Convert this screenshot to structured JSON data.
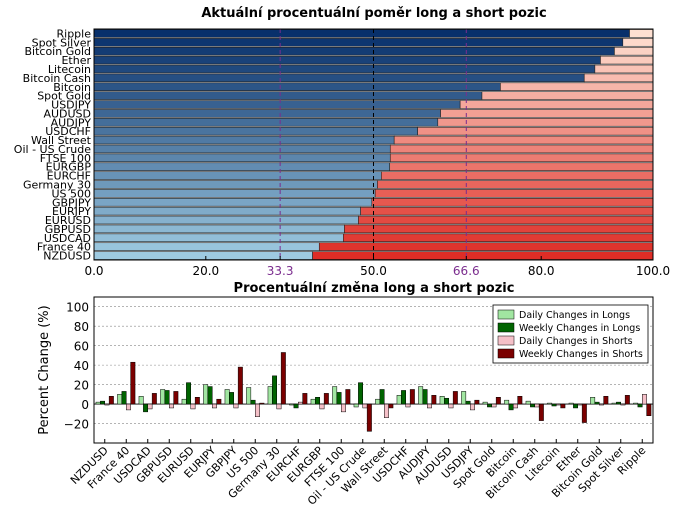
{
  "chart_data": [
    {
      "type": "bar",
      "orientation": "horizontal",
      "stacked": true,
      "title": "Aktuální procentuální poměr long a short pozic",
      "categories": [
        "Ripple",
        "Spot Silver",
        "Bitcoin Gold",
        "Ether",
        "Litecoin",
        "Bitcoin Cash",
        "Bitcoin",
        "Spot Gold",
        "USDJPY",
        "AUDUSD",
        "AUDJPY",
        "USDCHF",
        "Wall Street",
        "Oil - US Crude",
        "FTSE 100",
        "EURGBP",
        "EURCHF",
        "Germany 30",
        "US 500",
        "GBPJPY",
        "EURJPY",
        "EURUSD",
        "GBPUSD",
        "USDCAD",
        "France 40",
        "NZDUSD"
      ],
      "series": [
        {
          "values": [
            95.8,
            94.6,
            93.1,
            90.6,
            89.6,
            87.7,
            72.7,
            69.4,
            65.5,
            62.0,
            61.5,
            57.9,
            53.7,
            53.0,
            53.0,
            52.9,
            51.4,
            50.7,
            50.3,
            49.7,
            47.7,
            47.3,
            44.8,
            44.6,
            40.3,
            39.1
          ]
        },
        {
          "values": [
            4.2,
            5.4,
            6.9,
            9.4,
            10.4,
            12.3,
            27.3,
            30.6,
            34.5,
            38.0,
            38.5,
            42.1,
            46.3,
            47.0,
            47.0,
            47.1,
            48.6,
            49.3,
            49.7,
            50.3,
            52.3,
            52.7,
            55.2,
            55.4,
            59.7,
            60.9
          ]
        }
      ],
      "xlim": [
        0,
        100
      ],
      "xticks": [
        "0.0",
        "20.0",
        "33.3",
        "50.0",
        "66.6",
        "80.0",
        "100.0"
      ],
      "reference_lines": [
        33.3,
        50.0,
        66.6
      ],
      "colors": {
        "long_light": "#9ecae1",
        "long_dark": "#08306b",
        "short_light": "#fee0d2",
        "short_dark": "#de2d26",
        "ref_purple": "#7b2d8e"
      }
    },
    {
      "type": "bar",
      "title": "Procentuální změna long a short pozic",
      "ylabel": "Percent Change (%)",
      "ylim": [
        -40,
        110
      ],
      "yticks": [
        "100",
        "80",
        "60",
        "40",
        "20",
        "0",
        "−20"
      ],
      "categories": [
        "NZDUSD",
        "France 40",
        "USDCAD",
        "GBPUSD",
        "EURUSD",
        "EURJPY",
        "GBPJPY",
        "US 500",
        "Germany 30",
        "EURCHF",
        "EURGBP",
        "FTSE 100",
        "Oil - US Crude",
        "Wall Street",
        "USDCHF",
        "AUDJPY",
        "AUDUSD",
        "USDJPY",
        "Spot Gold",
        "Bitcoin",
        "Bitcoin Cash",
        "Litecoin",
        "Ether",
        "Bitcoin Gold",
        "Spot Silver",
        "Ripple"
      ],
      "series": [
        {
          "name": "Daily Changes in Longs",
          "color": "#a1e6a1",
          "values": [
            2,
            10,
            8,
            15,
            5,
            20,
            15,
            17,
            18,
            -1,
            5,
            18,
            -3,
            5,
            9,
            18,
            8,
            13,
            2,
            4,
            3,
            1,
            1,
            7,
            1,
            1
          ]
        },
        {
          "name": "Weekly Changes in Longs",
          "color": "#006400",
          "values": [
            3,
            13,
            -8,
            14,
            22,
            18,
            12,
            4,
            29,
            -4,
            7,
            12,
            22,
            15,
            14,
            15,
            6,
            3,
            -3,
            -6,
            -3,
            -2,
            -4,
            2,
            2,
            -3
          ]
        },
        {
          "name": "Daily Changes in Shorts",
          "color": "#f5c0c8",
          "values": [
            -1,
            -6,
            -5,
            -4,
            -5,
            -4,
            -4,
            -13,
            -5,
            2,
            -5,
            -8,
            -4,
            -14,
            -3,
            -4,
            -4,
            -6,
            -3,
            -4,
            -3,
            -1,
            -1,
            -1,
            -1,
            10
          ]
        },
        {
          "name": "Weekly Changes in Shorts",
          "color": "#7b0000",
          "values": [
            8,
            43,
            11,
            13,
            7,
            5,
            38,
            1,
            53,
            11,
            11,
            15,
            -28,
            -4,
            15,
            9,
            13,
            4,
            7,
            8,
            -17,
            -4,
            -19,
            8,
            9,
            -12
          ]
        }
      ]
    }
  ]
}
